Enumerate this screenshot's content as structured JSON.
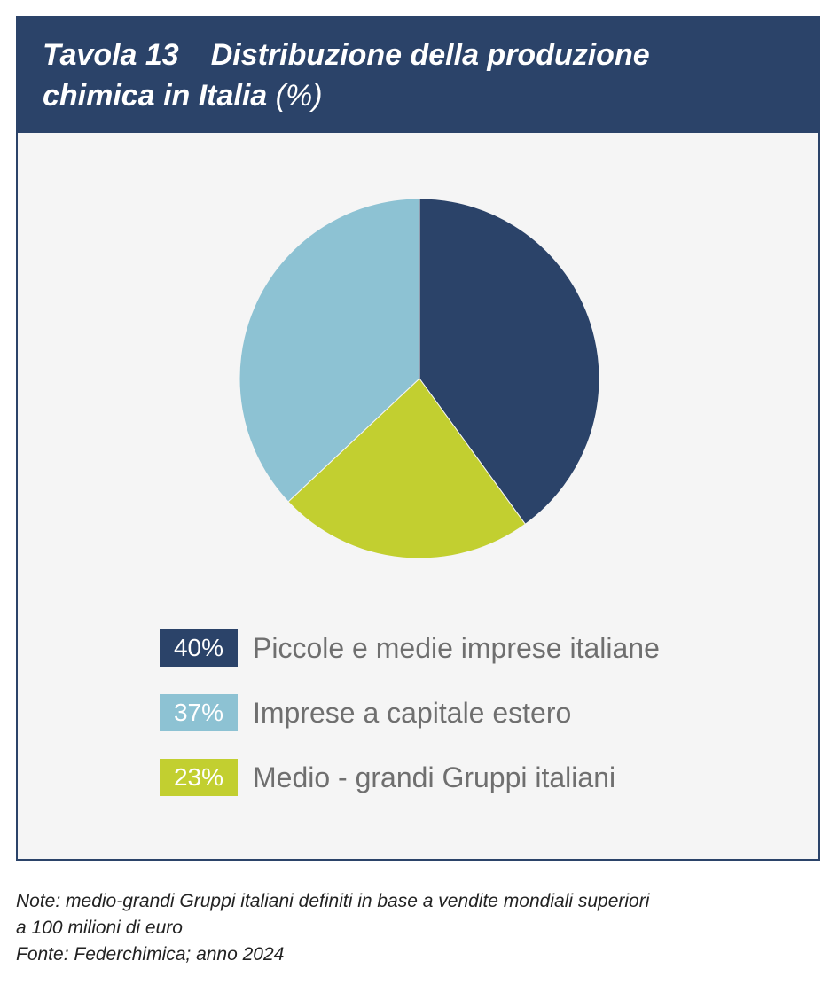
{
  "header": {
    "title_number": "Tavola 13",
    "title_line1": "Distribuzione della produzione",
    "title_line2": "chimica in Italia",
    "title_unit": "(%)"
  },
  "chart_data": {
    "type": "pie",
    "unit": "%",
    "slices": [
      {
        "label": "Piccole e medie imprese italiane",
        "value": 40,
        "value_label": "40%",
        "color": "#2b4369"
      },
      {
        "label": "Medio - grandi Gruppi italiani",
        "value": 23,
        "value_label": "23%",
        "color": "#c2cf30"
      },
      {
        "label": "Imprese a capitale estero",
        "value": 37,
        "value_label": "37%",
        "color": "#8dc2d3"
      }
    ]
  },
  "legend": [
    {
      "value_label": "40%",
      "label": "Piccole e medie imprese italiane",
      "color": "#2b4369"
    },
    {
      "value_label": "37%",
      "label": "Imprese a capitale estero",
      "color": "#8dc2d3"
    },
    {
      "value_label": "23%",
      "label": "Medio - grandi Gruppi italiani",
      "color": "#c2cf30"
    }
  ],
  "notes": {
    "line1": "Note: medio-grandi Gruppi italiani definiti in base a vendite mondiali superiori",
    "line2": "a 100 milioni di euro",
    "line3": "Fonte: Federchimica; anno 2024"
  }
}
